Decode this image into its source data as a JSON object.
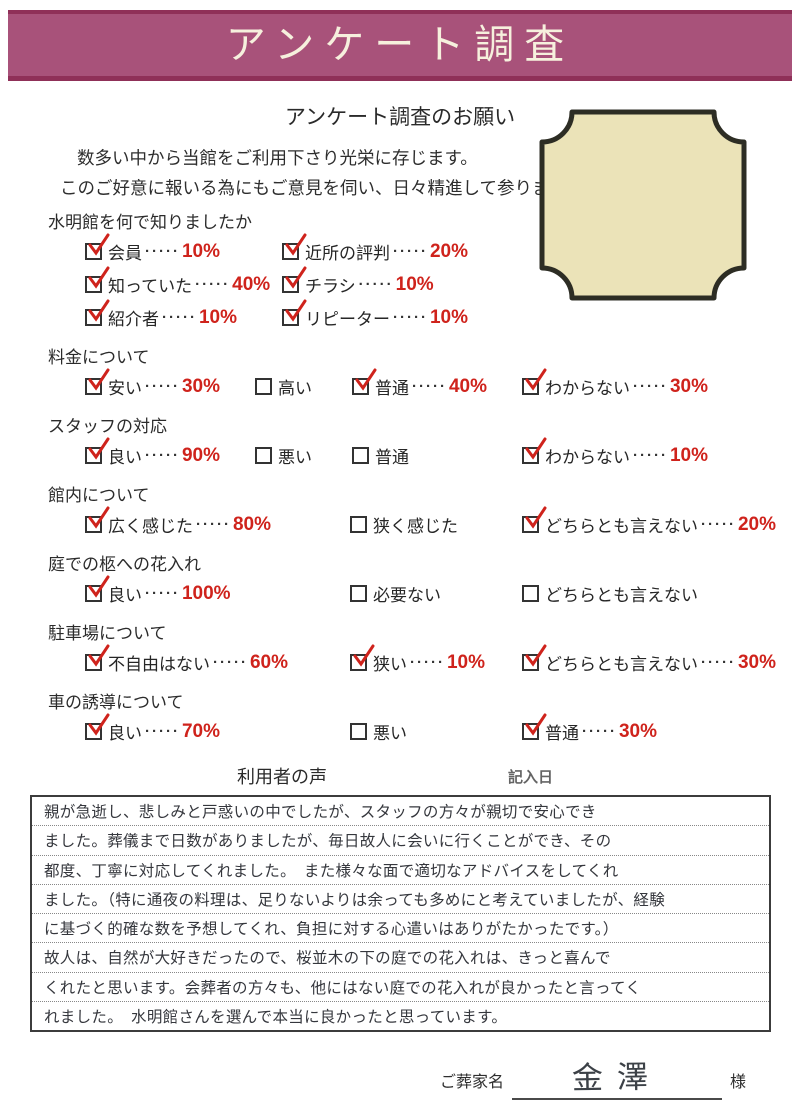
{
  "colors": {
    "banner_bg": "#a8527a",
    "banner_edge": "#8f3058",
    "banner_text": "#f6f0dd",
    "accent_red": "#cf231c",
    "stamp_fill": "#ebe3b8",
    "stamp_border": "#2d2d24"
  },
  "header": {
    "title": "アンケート調査"
  },
  "intro": {
    "subtitle": "アンケート調査のお願い",
    "line1": "数多い中から当館をご利用下さり光栄に存じます。",
    "line2": "このご好意に報いる為にもご意見を伺い、日々精進して参ります。"
  },
  "leader_dots": "·····",
  "questions": [
    {
      "title": "水明館を何で知りましたか",
      "options": [
        {
          "label": "会員",
          "checked": true,
          "value": "10%"
        },
        {
          "label": "近所の評判",
          "checked": true,
          "value": "20%"
        },
        {
          "label": "知っていた",
          "checked": true,
          "value": "40%"
        },
        {
          "label": "チラシ",
          "checked": true,
          "value": "10%"
        },
        {
          "label": "紹介者",
          "checked": true,
          "value": "10%"
        },
        {
          "label": "リピーター",
          "checked": true,
          "value": "10%"
        }
      ]
    },
    {
      "title": "料金について",
      "options": [
        {
          "label": "安い",
          "checked": true,
          "value": "30%"
        },
        {
          "label": "高い",
          "checked": false,
          "value": ""
        },
        {
          "label": "普通",
          "checked": true,
          "value": "40%"
        },
        {
          "label": "わからない",
          "checked": true,
          "value": "30%"
        }
      ]
    },
    {
      "title": "スタッフの対応",
      "options": [
        {
          "label": "良い",
          "checked": true,
          "value": "90%"
        },
        {
          "label": "悪い",
          "checked": false,
          "value": ""
        },
        {
          "label": "普通",
          "checked": false,
          "value": ""
        },
        {
          "label": "わからない",
          "checked": true,
          "value": "10%"
        }
      ]
    },
    {
      "title": "館内について",
      "options": [
        {
          "label": "広く感じた",
          "checked": true,
          "value": "80%"
        },
        {
          "label": "狭く感じた",
          "checked": false,
          "value": ""
        },
        {
          "label": "どちらとも言えない",
          "checked": true,
          "value": "20%"
        }
      ]
    },
    {
      "title": "庭での柩への花入れ",
      "options": [
        {
          "label": "良い",
          "checked": true,
          "value": "100%"
        },
        {
          "label": "必要ない",
          "checked": false,
          "value": ""
        },
        {
          "label": "どちらとも言えない",
          "checked": false,
          "value": ""
        }
      ]
    },
    {
      "title": "駐車場について",
      "options": [
        {
          "label": "不自由はない",
          "checked": true,
          "value": "60%"
        },
        {
          "label": "狭い",
          "checked": true,
          "value": "10%"
        },
        {
          "label": "どちらとも言えない",
          "checked": true,
          "value": "30%"
        }
      ]
    },
    {
      "title": "車の誘導について",
      "options": [
        {
          "label": "良い",
          "checked": true,
          "value": "70%"
        },
        {
          "label": "悪い",
          "checked": false,
          "value": ""
        },
        {
          "label": "普通",
          "checked": true,
          "value": "30%"
        }
      ]
    }
  ],
  "voice": {
    "title": "利用者の声",
    "date_label": "記入日",
    "comment_lines": [
      "親が急逝し、悲しみと戸惑いの中でしたが、スタッフの方々が親切で安心でき",
      "ました。葬儀まで日数がありましたが、毎日故人に会いに行くことができ、その",
      "都度、丁寧に対応してくれました。　また様々な面で適切なアドバイスをしてくれ",
      "ました。（特に通夜の料理は、足りないよりは余っても多めにと考えていましたが、経験",
      "に基づく的確な数を予想してくれ、負担に対する心遣いはありがたかったです。）",
      "故人は、自然が大好きだったので、桜並木の下の庭での花入れは、きっと喜んで",
      "くれたと思います。会葬者の方々も、他にはない庭での花入れが良かったと言ってく",
      "れました。　水明館さんを選んで本当に良かったと思っています。"
    ]
  },
  "footer": {
    "family_label": "ご葬家名",
    "family_name": "金澤",
    "honorific": "様"
  }
}
